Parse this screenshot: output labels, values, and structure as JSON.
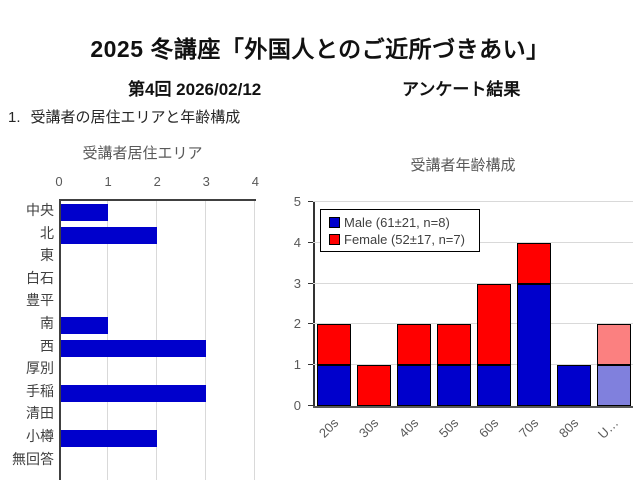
{
  "page": {
    "title": "2025 冬講座「外国人とのご近所づきあい」",
    "session": "第4回 2026/02/12",
    "survey_label": "アンケート結果",
    "section_number": "1.",
    "section_title": "受講者の居住エリアと年齢構成"
  },
  "colors": {
    "male_blue": "#0000CC",
    "female_red": "#FF0000",
    "male_unknown_light": "#8080DD",
    "female_unknown_light": "#FB8080",
    "axis_gray": "#595959",
    "gridline": "#D9D9D9"
  },
  "chart_data": [
    {
      "type": "bar",
      "orientation": "horizontal",
      "title": "受講者居住エリア",
      "categories": [
        "中央",
        "北",
        "東",
        "白石",
        "豊平",
        "南",
        "西",
        "厚別",
        "手稲",
        "清田",
        "小樽",
        "無回答"
      ],
      "values": [
        1,
        2,
        0,
        0,
        0,
        1,
        3,
        0,
        3,
        0,
        2,
        0
      ],
      "xlabel": "",
      "ylabel": "",
      "xlim": [
        0,
        4
      ],
      "xticks": [
        0,
        1,
        2,
        3,
        4
      ],
      "axis_position": "top",
      "grid": true,
      "bar_color": "#0000CC"
    },
    {
      "type": "bar",
      "stacked": true,
      "title": "受講者年齢構成",
      "categories": [
        "20s",
        "30s",
        "40s",
        "50s",
        "60s",
        "70s",
        "80s",
        "U…"
      ],
      "series": [
        {
          "name": "Male (61±21, n=8)",
          "color": "#0000CC",
          "values": [
            1,
            0,
            1,
            1,
            1,
            3,
            1,
            1
          ]
        },
        {
          "name": "Female (52±17, n=7)",
          "color": "#FF0000",
          "values": [
            1,
            1,
            1,
            1,
            2,
            1,
            0,
            1
          ]
        }
      ],
      "last_category_muted": true,
      "last_category_colors": {
        "male": "#8080DD",
        "female": "#FB8080"
      },
      "xlabel": "",
      "ylabel": "",
      "ylim": [
        0,
        5
      ],
      "yticks": [
        0,
        1,
        2,
        3,
        4,
        5
      ],
      "grid": true,
      "legend_position": "top-left"
    }
  ]
}
